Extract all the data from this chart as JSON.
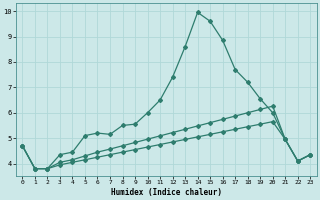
{
  "xlabel": "Humidex (Indice chaleur)",
  "bg_color": "#cce8e8",
  "line_color": "#2e7d6e",
  "grid_color": "#b0d8d8",
  "xlim": [
    -0.5,
    23.5
  ],
  "ylim": [
    3.5,
    10.3
  ],
  "xtick_labels": [
    "0",
    "1",
    "2",
    "3",
    "4",
    "5",
    "6",
    "7",
    "8",
    "9",
    "10",
    "11",
    "12",
    "13",
    "14",
    "15",
    "16",
    "17",
    "18",
    "19",
    "20",
    "21",
    "22",
    "23"
  ],
  "yticks": [
    4,
    5,
    6,
    7,
    8,
    9,
    10
  ],
  "main_x": [
    0,
    1,
    2,
    3,
    4,
    5,
    6,
    7,
    8,
    9,
    10,
    11,
    12,
    13,
    14,
    15,
    16,
    17,
    18,
    19,
    20,
    21,
    22,
    23
  ],
  "main_y": [
    4.7,
    3.8,
    3.8,
    4.35,
    4.45,
    5.1,
    5.2,
    5.15,
    5.5,
    5.55,
    6.0,
    6.5,
    7.4,
    8.6,
    9.95,
    9.6,
    8.85,
    7.7,
    7.2,
    6.55,
    6.0,
    4.95,
    4.1,
    4.35
  ],
  "line2_x": [
    0,
    1,
    2,
    3,
    4,
    5,
    6,
    7,
    8,
    9,
    10,
    11,
    12,
    13,
    14,
    15,
    16,
    17,
    18,
    19,
    20,
    21,
    22,
    23
  ],
  "line2_y": [
    4.7,
    3.8,
    3.8,
    4.05,
    4.15,
    4.3,
    4.45,
    4.57,
    4.7,
    4.83,
    4.96,
    5.09,
    5.22,
    5.35,
    5.48,
    5.61,
    5.74,
    5.87,
    6.0,
    6.13,
    6.26,
    4.95,
    4.1,
    4.35
  ],
  "line3_x": [
    0,
    1,
    2,
    3,
    4,
    5,
    6,
    7,
    8,
    9,
    10,
    11,
    12,
    13,
    14,
    15,
    16,
    17,
    18,
    19,
    20,
    21,
    22,
    23
  ],
  "line3_y": [
    4.7,
    3.8,
    3.8,
    3.95,
    4.05,
    4.15,
    4.25,
    4.35,
    4.45,
    4.55,
    4.65,
    4.75,
    4.85,
    4.95,
    5.05,
    5.15,
    5.25,
    5.35,
    5.45,
    5.55,
    5.65,
    4.95,
    4.1,
    4.35
  ]
}
